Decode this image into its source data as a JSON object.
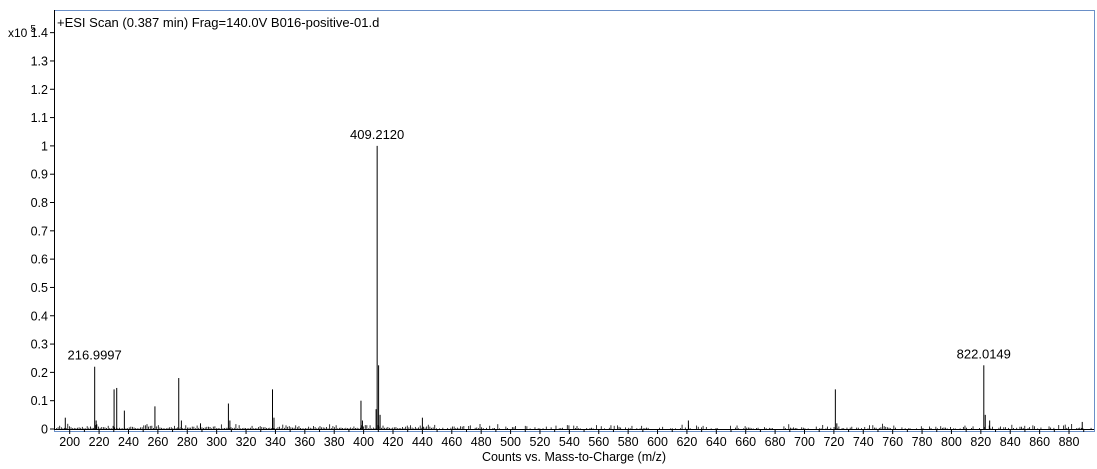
{
  "chart_data": {
    "type": "line",
    "title": "+ESI Scan (0.387 min) Frag=140.0V B016-positive-01.d",
    "xlabel": "Counts vs. Mass-to-Charge (m/z)",
    "y_multiplier": "x10",
    "y_exponent": "5",
    "xlim": [
      190,
      897
    ],
    "ylim": [
      0,
      1.48
    ],
    "x_ticks": [
      200,
      220,
      240,
      260,
      280,
      300,
      320,
      340,
      360,
      380,
      400,
      420,
      440,
      460,
      480,
      500,
      520,
      540,
      560,
      580,
      600,
      620,
      640,
      660,
      680,
      700,
      720,
      740,
      760,
      780,
      800,
      820,
      840,
      860,
      880
    ],
    "y_ticks": [
      0,
      0.1,
      0.2,
      0.3,
      0.4,
      0.5,
      0.6,
      0.7,
      0.8,
      0.9,
      1,
      1.1,
      1.2,
      1.3,
      1.4
    ],
    "series": [
      {
        "points": [
          {
            "x": 197.0,
            "y": 0.04
          },
          {
            "x": 216.9997,
            "y": 0.22
          },
          {
            "x": 218.0,
            "y": 0.03
          },
          {
            "x": 230.2,
            "y": 0.14
          },
          {
            "x": 232.0,
            "y": 0.145
          },
          {
            "x": 237.2,
            "y": 0.065
          },
          {
            "x": 258.0,
            "y": 0.08
          },
          {
            "x": 274.2,
            "y": 0.18
          },
          {
            "x": 276.0,
            "y": 0.03
          },
          {
            "x": 289.0,
            "y": 0.02
          },
          {
            "x": 308.0,
            "y": 0.09
          },
          {
            "x": 309.0,
            "y": 0.03
          },
          {
            "x": 338.0,
            "y": 0.14
          },
          {
            "x": 339.0,
            "y": 0.04
          },
          {
            "x": 398.2,
            "y": 0.1
          },
          {
            "x": 399.2,
            "y": 0.03
          },
          {
            "x": 408.5,
            "y": 0.07
          },
          {
            "x": 409.212,
            "y": 1.0
          },
          {
            "x": 410.2,
            "y": 0.225
          },
          {
            "x": 411.2,
            "y": 0.05
          },
          {
            "x": 440.0,
            "y": 0.04
          },
          {
            "x": 621.0,
            "y": 0.03
          },
          {
            "x": 721.0,
            "y": 0.14
          },
          {
            "x": 722.0,
            "y": 0.02
          },
          {
            "x": 822.0149,
            "y": 0.225
          },
          {
            "x": 823.0,
            "y": 0.05
          },
          {
            "x": 826.0,
            "y": 0.03
          },
          {
            "x": 889.0,
            "y": 0.025
          }
        ]
      }
    ],
    "peak_labels": [
      {
        "x": 216.9997,
        "y": 0.22,
        "text": "216.9997"
      },
      {
        "x": 409.212,
        "y": 1.0,
        "text": "409.2120"
      },
      {
        "x": 822.0149,
        "y": 0.225,
        "text": "822.0149"
      }
    ],
    "grid": false
  }
}
